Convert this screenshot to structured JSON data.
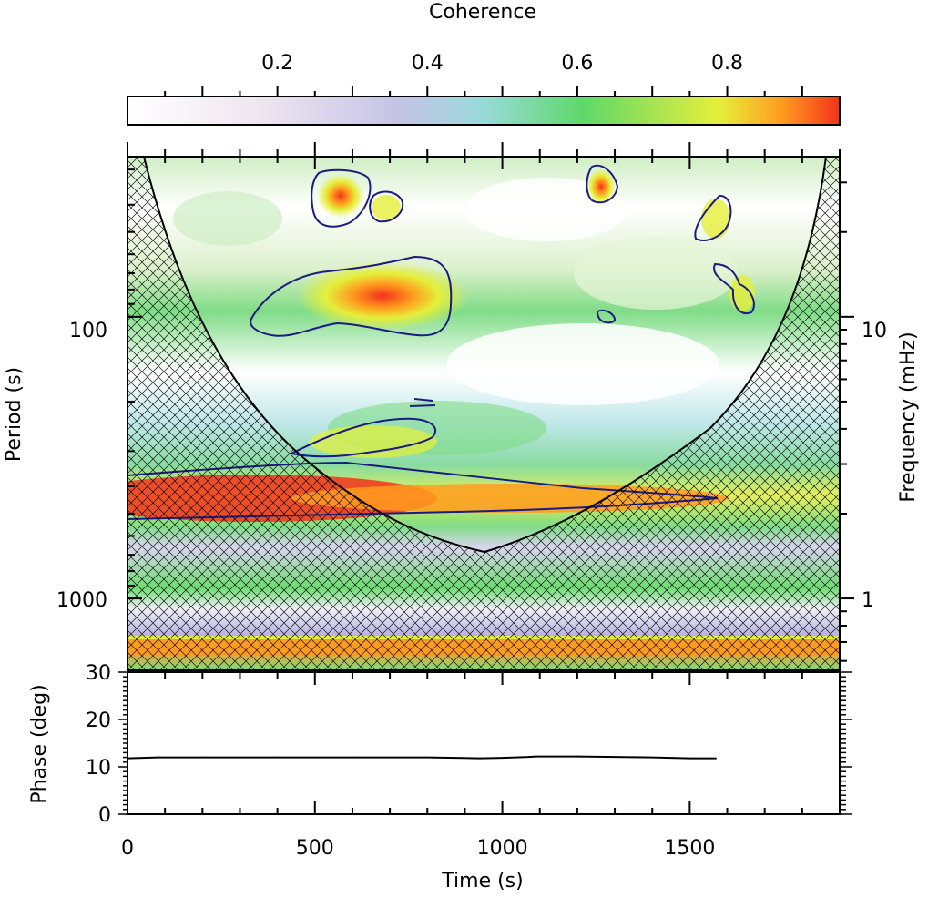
{
  "colorbar": {
    "title": "Coherence",
    "range": [
      0.0,
      0.95
    ],
    "ticks": [
      0.2,
      0.4,
      0.6,
      0.8
    ],
    "tick_labels": [
      "0.2",
      "0.4",
      "0.6",
      "0.8"
    ],
    "colors": [
      "#ffffff",
      "#c9c9e8",
      "#9ad6e0",
      "#5fd86a",
      "#e9ef3a",
      "#ff9a1e",
      "#f2361a"
    ]
  },
  "chart_data": [
    {
      "type": "heatmap",
      "title": "",
      "xlabel": "",
      "ylabel": "Period (s)",
      "y2label": "Frequency (mHz)",
      "xlim": [
        0,
        1900
      ],
      "ylim": [
        27,
        1800
      ],
      "yscale": "log",
      "y_tick_labels": [
        "100",
        "1000"
      ],
      "y2_tick_labels": [
        "10",
        "1"
      ],
      "description_values": {
        "strong_band_period_s": 370,
        "bottom_band_period_s": 1600,
        "coi_min_period_s": 650,
        "coi_min_time_s": 950
      },
      "significance_contours": [
        {
          "region": "upper-left blob",
          "t_range": [
            560,
            720
          ],
          "period_range": [
            30,
            45
          ]
        },
        {
          "region": "central blob",
          "t_range": [
            330,
            860
          ],
          "period_range": [
            70,
            110
          ]
        },
        {
          "region": "long band",
          "t_range": [
            0,
            1570
          ],
          "period_range": [
            310,
            500
          ]
        }
      ]
    },
    {
      "type": "line",
      "title": "",
      "xlabel": "Time (s)",
      "ylabel": "Phase (deg)",
      "xlim": [
        0,
        1900
      ],
      "ylim": [
        0,
        30
      ],
      "x_ticks": [
        0,
        500,
        1000,
        1500
      ],
      "x_tick_labels": [
        "0",
        "500",
        "1000",
        "1500"
      ],
      "y_ticks": [
        0,
        10,
        20,
        30
      ],
      "y_tick_labels": [
        "0",
        "10",
        "20",
        "30"
      ],
      "x": [
        0,
        80,
        200,
        400,
        600,
        800,
        940,
        1000,
        1070,
        1090,
        1200,
        1300,
        1400,
        1500,
        1570
      ],
      "y": [
        11.8,
        12.0,
        12.0,
        12.0,
        12.0,
        12.0,
        11.8,
        11.9,
        12.1,
        12.2,
        12.2,
        12.1,
        12.0,
        11.8,
        11.8
      ]
    }
  ]
}
